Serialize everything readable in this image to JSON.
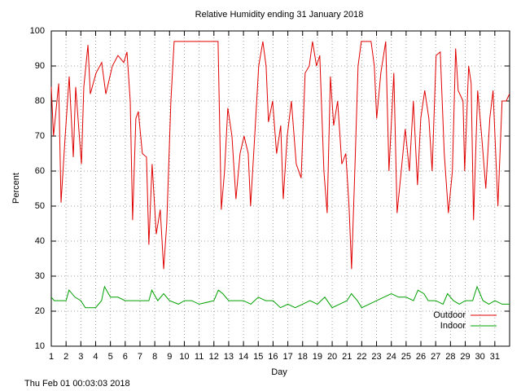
{
  "chart_data": {
    "type": "line",
    "title": "Relative Humidity ending 31 January 2018",
    "x_label": "Day",
    "y_label": "Percent",
    "footer": "Thu Feb 01 00:03:03 2018",
    "xlim": [
      1,
      32
    ],
    "ylim": [
      10,
      100
    ],
    "xticks": [
      1,
      2,
      3,
      4,
      5,
      6,
      7,
      8,
      9,
      10,
      11,
      12,
      13,
      14,
      15,
      16,
      17,
      18,
      19,
      20,
      21,
      22,
      23,
      24,
      25,
      26,
      27,
      28,
      29,
      30,
      31
    ],
    "yticks": [
      10,
      20,
      30,
      40,
      50,
      60,
      70,
      80,
      90,
      100
    ],
    "grid": true,
    "legend": "lower right",
    "series": [
      {
        "name": "Outdoor",
        "color": "#e00000",
        "x": [
          1.0,
          1.15,
          1.5,
          1.66,
          1.94,
          2.21,
          2.49,
          2.65,
          3.04,
          3.2,
          3.48,
          3.64,
          4.03,
          4.41,
          4.69,
          5.13,
          5.51,
          5.9,
          6.12,
          6.34,
          6.5,
          6.72,
          6.89,
          7.16,
          7.44,
          7.6,
          7.82,
          8.1,
          8.37,
          8.6,
          8.81,
          9.09,
          9.31,
          12.28,
          12.5,
          12.72,
          12.94,
          13.22,
          13.49,
          13.77,
          14.04,
          14.32,
          14.48,
          14.76,
          15.03,
          15.31,
          15.53,
          15.69,
          15.97,
          16.24,
          16.52,
          16.69,
          16.96,
          17.24,
          17.57,
          17.9,
          18.17,
          18.45,
          18.67,
          18.94,
          19.16,
          19.44,
          19.66,
          19.88,
          20.1,
          20.37,
          20.65,
          20.92,
          21.14,
          21.31,
          21.53,
          21.75,
          21.97,
          22.63,
          22.85,
          23.01,
          23.29,
          23.62,
          23.84,
          24.17,
          24.39,
          24.67,
          24.94,
          25.22,
          25.49,
          25.77,
          25.99,
          26.26,
          26.54,
          26.76,
          27.03,
          27.31,
          27.58,
          27.86,
          28.13,
          28.35,
          28.52,
          28.85,
          28.96,
          29.23,
          29.4,
          29.56,
          29.84,
          30.11,
          30.39,
          30.66,
          30.88,
          31.21,
          31.49,
          31.77,
          31.99
        ],
        "values": [
          84,
          70,
          85,
          51,
          70,
          87,
          64,
          84,
          62,
          84,
          96,
          82,
          88,
          91,
          82,
          90,
          93,
          91,
          94,
          80,
          46,
          75,
          77,
          65,
          64,
          39,
          62,
          42,
          49,
          32,
          45,
          80,
          97,
          97,
          49,
          60,
          78,
          70,
          52,
          65,
          70,
          65,
          50,
          70,
          90,
          97,
          90,
          74,
          80,
          65,
          73,
          52,
          70,
          80,
          62,
          58,
          88,
          90,
          97,
          90,
          93,
          60,
          48,
          87,
          73,
          80,
          62,
          65,
          50,
          32,
          60,
          90,
          97,
          97,
          90,
          75,
          88,
          97,
          60,
          88,
          48,
          60,
          72,
          60,
          80,
          56,
          75,
          83,
          75,
          60,
          93,
          94,
          65,
          48,
          60,
          95,
          83,
          80,
          60,
          90,
          85,
          46,
          83,
          70,
          55,
          75,
          83,
          50,
          80,
          80,
          82
        ]
      },
      {
        "name": "Indoor",
        "color": "#00a000",
        "x": [
          1.0,
          1.2,
          2.0,
          2.2,
          2.6,
          3.0,
          3.3,
          4.0,
          4.4,
          4.6,
          5.0,
          5.5,
          6.0,
          7.0,
          7.6,
          7.8,
          8.2,
          8.6,
          9.0,
          9.6,
          10.0,
          10.5,
          11.0,
          12.0,
          12.3,
          12.6,
          13.0,
          14.0,
          14.5,
          15.0,
          15.5,
          16.0,
          16.5,
          17.0,
          17.5,
          18.0,
          18.5,
          19.0,
          19.5,
          20.0,
          20.5,
          21.0,
          21.3,
          21.7,
          22.0,
          22.5,
          23.0,
          23.5,
          24.0,
          24.5,
          25.0,
          25.5,
          25.8,
          26.2,
          26.5,
          27.0,
          27.5,
          27.8,
          28.2,
          28.6,
          29.0,
          29.5,
          29.8,
          30.2,
          30.6,
          31.0,
          31.5,
          32.0
        ],
        "values": [
          24,
          23,
          23,
          26,
          24,
          23,
          21,
          21,
          23,
          27,
          24,
          24,
          23,
          23,
          23,
          26,
          23,
          25,
          23,
          22,
          23,
          23,
          22,
          23,
          26,
          25,
          23,
          23,
          22,
          24,
          23,
          23,
          21,
          22,
          21,
          22,
          23,
          22,
          24,
          21,
          22,
          23,
          25,
          23,
          21,
          22,
          23,
          24,
          25,
          24,
          24,
          23,
          26,
          25,
          23,
          23,
          22,
          25,
          23,
          22,
          23,
          23,
          27,
          23,
          22,
          23,
          22,
          22
        ]
      }
    ]
  }
}
